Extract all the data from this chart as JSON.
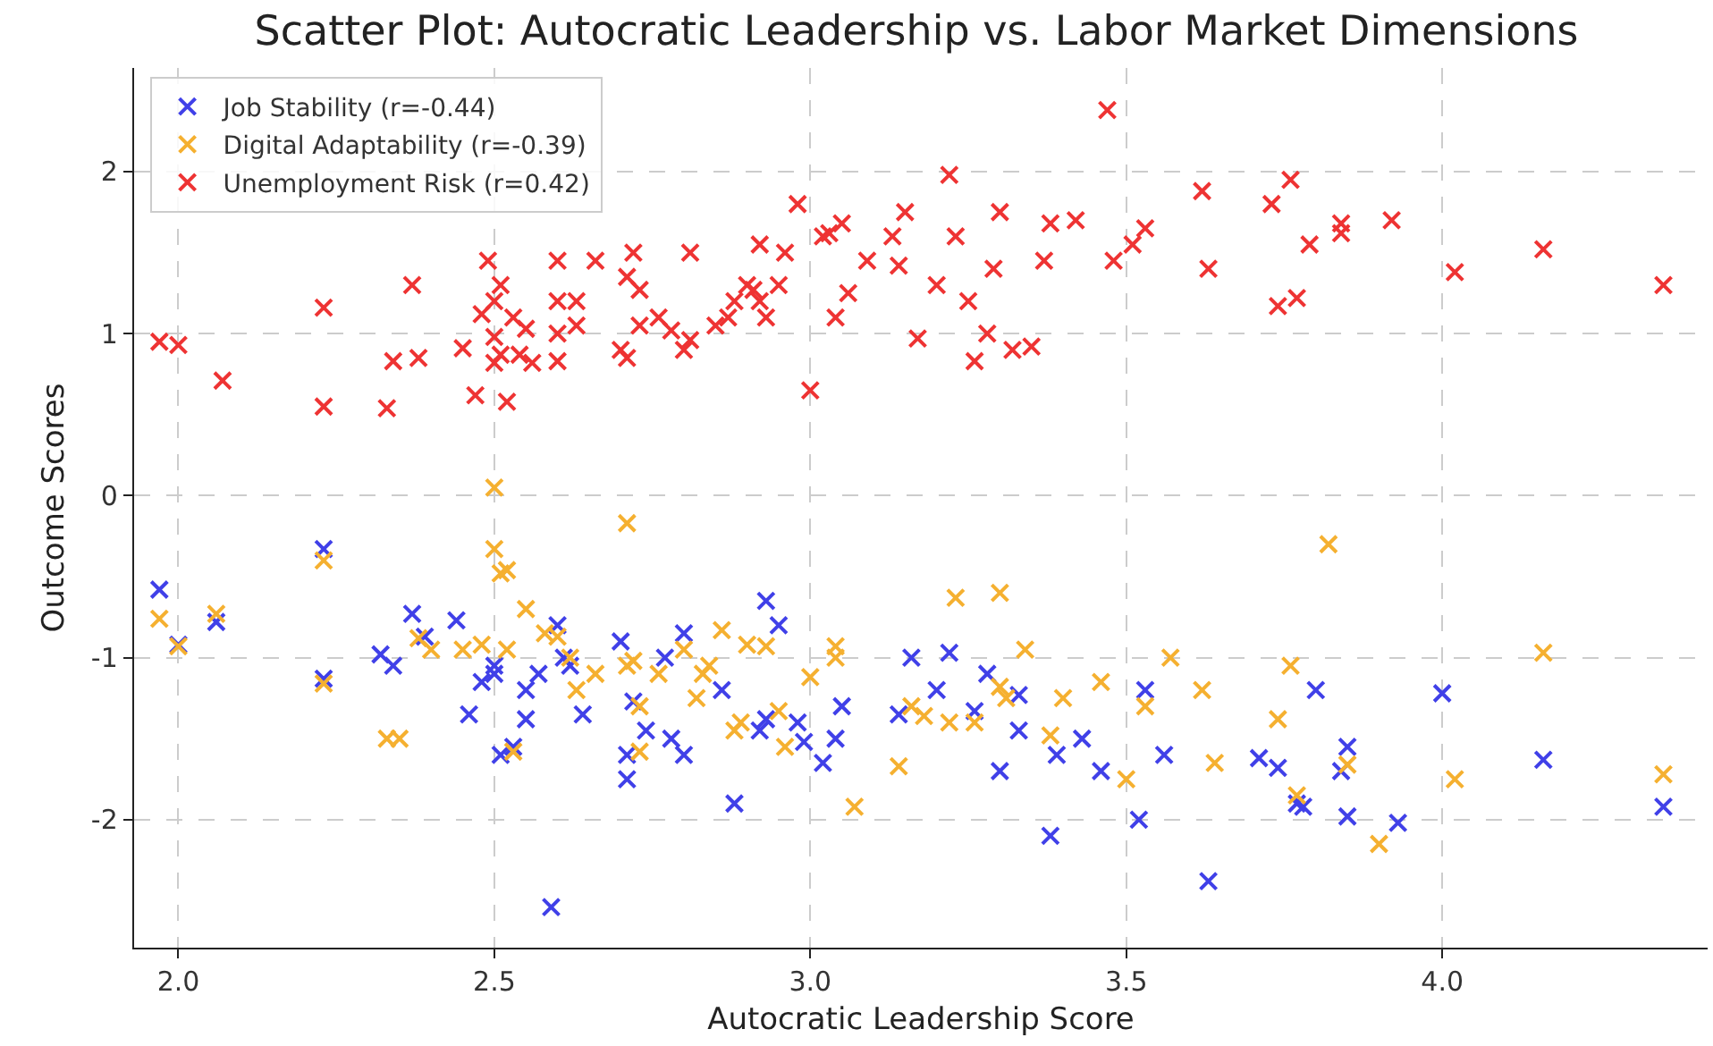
{
  "chart_data": {
    "type": "scatter",
    "title": "Scatter Plot: Autocratic Leadership vs. Labor Market Dimensions",
    "xlabel": "Autocratic Leadership Score",
    "ylabel": "Outcome Scores",
    "xlim": [
      1.93,
      4.42
    ],
    "ylim": [
      -2.79,
      2.64
    ],
    "xticks": [
      {
        "value": 2,
        "label": "2.0"
      },
      {
        "value": 2.5,
        "label": "2.5"
      },
      {
        "value": 3,
        "label": "3.0"
      },
      {
        "value": 3.5,
        "label": "3.5"
      },
      {
        "value": 4,
        "label": "4.0"
      }
    ],
    "yticks": [
      -2,
      -1,
      0,
      1,
      2
    ],
    "grid": true,
    "legend": "top left",
    "marker": "cross",
    "series": [
      {
        "name": "Job Stability (r=-0.44)",
        "color": "#4040e8",
        "x": [
          1.97,
          2.0,
          2.06,
          2.23,
          2.23,
          2.32,
          2.34,
          2.37,
          2.39,
          2.44,
          2.46,
          2.48,
          2.5,
          2.5,
          2.51,
          2.53,
          2.55,
          2.55,
          2.57,
          2.59,
          2.6,
          2.61,
          2.62,
          2.64,
          2.7,
          2.71,
          2.71,
          2.72,
          2.74,
          2.77,
          2.78,
          2.8,
          2.8,
          2.86,
          2.88,
          2.93,
          2.95,
          2.92,
          2.93,
          2.98,
          3.02,
          3.04,
          3.05,
          2.99,
          3.14,
          3.16,
          3.2,
          3.22,
          3.26,
          3.28,
          3.3,
          3.33,
          3.33,
          3.38,
          3.39,
          3.43,
          3.46,
          3.52,
          3.53,
          3.56,
          3.63,
          3.71,
          3.74,
          3.77,
          3.78,
          3.8,
          3.84,
          3.85,
          3.85,
          3.93,
          4.0,
          4.16,
          4.35
        ],
        "values": [
          -0.58,
          -0.92,
          -0.78,
          -0.33,
          -1.13,
          -0.98,
          -1.05,
          -0.73,
          -0.87,
          -0.77,
          -1.35,
          -1.15,
          -1.1,
          -1.05,
          -1.6,
          -1.55,
          -1.2,
          -1.38,
          -1.1,
          -2.54,
          -0.8,
          -1.0,
          -1.05,
          -1.35,
          -0.9,
          -1.75,
          -1.6,
          -1.27,
          -1.45,
          -1.0,
          -1.5,
          -1.6,
          -0.85,
          -1.2,
          -1.9,
          -0.65,
          -0.8,
          -1.45,
          -1.38,
          -1.4,
          -1.65,
          -1.5,
          -1.3,
          -1.52,
          -1.35,
          -1.0,
          -1.2,
          -0.97,
          -1.33,
          -1.1,
          -1.7,
          -1.45,
          -1.23,
          -2.1,
          -1.6,
          -1.5,
          -1.7,
          -2.0,
          -1.2,
          -1.6,
          -2.38,
          -1.62,
          -1.68,
          -1.9,
          -1.92,
          -1.2,
          -1.7,
          -1.55,
          -1.98,
          -2.02,
          -1.22,
          -1.63,
          -1.92
        ]
      },
      {
        "name": "Digital Adaptability (r=-0.39)",
        "color": "#f5b030",
        "x": [
          1.97,
          2.0,
          2.06,
          2.23,
          2.23,
          2.33,
          2.35,
          2.38,
          2.4,
          2.45,
          2.48,
          2.5,
          2.5,
          2.51,
          2.52,
          2.53,
          2.52,
          2.55,
          2.58,
          2.6,
          2.62,
          2.63,
          2.66,
          2.71,
          2.71,
          2.72,
          2.73,
          2.73,
          2.76,
          2.8,
          2.82,
          2.83,
          2.86,
          2.89,
          2.9,
          2.93,
          2.95,
          2.96,
          3.0,
          3.04,
          3.04,
          3.14,
          3.16,
          3.18,
          3.22,
          3.23,
          3.26,
          3.3,
          3.3,
          3.31,
          3.34,
          3.38,
          3.4,
          3.46,
          3.5,
          3.53,
          3.57,
          3.62,
          3.64,
          3.74,
          3.76,
          3.77,
          3.82,
          3.85,
          3.9,
          4.02,
          4.16,
          4.35,
          3.07,
          2.84,
          2.88
        ],
        "values": [
          -0.76,
          -0.93,
          -0.73,
          -0.4,
          -1.16,
          -1.5,
          -1.5,
          -0.88,
          -0.95,
          -0.95,
          -0.92,
          0.05,
          -0.33,
          -0.48,
          -0.46,
          -1.58,
          -0.95,
          -0.7,
          -0.85,
          -0.87,
          -1.0,
          -1.2,
          -1.1,
          -0.17,
          -1.05,
          -1.02,
          -1.3,
          -1.58,
          -1.1,
          -0.95,
          -1.25,
          -1.1,
          -0.83,
          -1.4,
          -0.92,
          -0.93,
          -1.33,
          -1.55,
          -1.12,
          -1.0,
          -0.93,
          -1.67,
          -1.3,
          -1.36,
          -1.4,
          -0.63,
          -1.4,
          -0.6,
          -1.18,
          -1.25,
          -0.95,
          -1.48,
          -1.25,
          -1.15,
          -1.75,
          -1.3,
          -1.0,
          -1.2,
          -1.65,
          -1.38,
          -1.05,
          -1.85,
          -0.3,
          -1.66,
          -2.15,
          -1.75,
          -0.97,
          -1.72,
          -1.92,
          -1.05,
          -1.45
        ]
      },
      {
        "name": "Unemployment Risk (r=0.42)",
        "color": "#ee3333",
        "x": [
          1.97,
          2.0,
          2.07,
          2.23,
          2.23,
          2.33,
          2.34,
          2.37,
          2.38,
          2.45,
          2.47,
          2.48,
          2.49,
          2.5,
          2.5,
          2.5,
          2.51,
          2.51,
          2.52,
          2.53,
          2.54,
          2.55,
          2.56,
          2.6,
          2.6,
          2.6,
          2.6,
          2.63,
          2.63,
          2.66,
          2.7,
          2.71,
          2.71,
          2.72,
          2.73,
          2.73,
          2.76,
          2.78,
          2.8,
          2.81,
          2.81,
          2.85,
          2.87,
          2.88,
          2.9,
          2.91,
          2.92,
          2.92,
          2.93,
          2.95,
          2.96,
          2.98,
          3.0,
          3.02,
          3.03,
          3.04,
          3.05,
          3.06,
          3.09,
          3.13,
          3.14,
          3.15,
          3.17,
          3.2,
          3.22,
          3.23,
          3.25,
          3.26,
          3.28,
          3.29,
          3.3,
          3.32,
          3.35,
          3.37,
          3.38,
          3.42,
          3.47,
          3.48,
          3.51,
          3.53,
          3.62,
          3.63,
          3.73,
          3.74,
          3.76,
          3.77,
          3.79,
          3.84,
          3.84,
          3.92,
          4.02,
          4.16,
          4.35
        ],
        "values": [
          0.95,
          0.93,
          0.71,
          1.16,
          0.55,
          0.54,
          0.83,
          1.3,
          0.85,
          0.91,
          0.62,
          1.12,
          1.45,
          0.98,
          0.82,
          1.2,
          1.3,
          0.87,
          0.58,
          1.1,
          0.87,
          1.03,
          0.82,
          1.45,
          1.2,
          0.83,
          1.0,
          1.05,
          1.2,
          1.45,
          0.9,
          0.85,
          1.35,
          1.5,
          1.05,
          1.27,
          1.1,
          1.02,
          0.9,
          1.5,
          0.96,
          1.05,
          1.1,
          1.2,
          1.3,
          1.27,
          1.55,
          1.2,
          1.1,
          1.3,
          1.5,
          1.8,
          0.65,
          1.6,
          1.62,
          1.1,
          1.68,
          1.25,
          1.45,
          1.6,
          1.42,
          1.75,
          0.97,
          1.3,
          1.98,
          1.6,
          1.2,
          0.83,
          1.0,
          1.4,
          1.75,
          0.9,
          0.92,
          1.45,
          1.68,
          1.7,
          2.38,
          1.45,
          1.55,
          1.65,
          1.88,
          1.4,
          1.8,
          1.17,
          1.95,
          1.22,
          1.55,
          1.68,
          1.62,
          1.7,
          1.38,
          1.52,
          1.3
        ]
      }
    ]
  }
}
